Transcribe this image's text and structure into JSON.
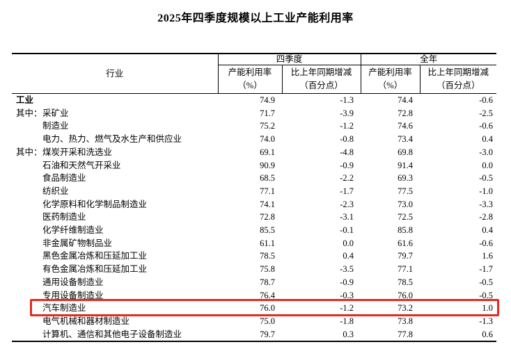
{
  "title": "2025年四季度规模以上工业产能利用率",
  "table": {
    "header": {
      "industry": "行业",
      "groups": [
        {
          "label": "四季度",
          "sub": [
            {
              "line1": "产能利用率",
              "line2": "（%）"
            },
            {
              "line1": "比上年同期增减",
              "line2": "（百分点）"
            }
          ]
        },
        {
          "label": "全年",
          "sub": [
            {
              "line1": "产能利用率",
              "line2": "（%）"
            },
            {
              "line1": "比上年同期增减",
              "line2": "（百分点）"
            }
          ]
        }
      ]
    },
    "rows": [
      {
        "prefix": "",
        "label": "工业",
        "bold": true,
        "indent": false,
        "highlight": false,
        "values": [
          "74.9",
          "-1.3",
          "74.4",
          "-0.6"
        ]
      },
      {
        "prefix": "其中：",
        "label": "采矿业",
        "bold": false,
        "indent": true,
        "highlight": false,
        "values": [
          "71.7",
          "-3.9",
          "72.8",
          "-2.5"
        ]
      },
      {
        "prefix": "",
        "label": "制造业",
        "bold": false,
        "indent": true,
        "highlight": false,
        "values": [
          "75.2",
          "-1.2",
          "74.6",
          "-0.6"
        ]
      },
      {
        "prefix": "",
        "label": "电力、热力、燃气及水生产和供应业",
        "bold": false,
        "indent": true,
        "highlight": false,
        "values": [
          "74.0",
          "-0.8",
          "73.4",
          "0.4"
        ]
      },
      {
        "prefix": "其中：",
        "label": "煤炭开采和洗选业",
        "bold": false,
        "indent": true,
        "highlight": false,
        "values": [
          "69.1",
          "-4.8",
          "69.8",
          "-3.0"
        ]
      },
      {
        "prefix": "",
        "label": "石油和天然气开采业",
        "bold": false,
        "indent": true,
        "highlight": false,
        "values": [
          "90.9",
          "-0.9",
          "91.4",
          "0.0"
        ]
      },
      {
        "prefix": "",
        "label": "食品制造业",
        "bold": false,
        "indent": true,
        "highlight": false,
        "values": [
          "68.5",
          "-2.2",
          "69.3",
          "-0.5"
        ]
      },
      {
        "prefix": "",
        "label": "纺织业",
        "bold": false,
        "indent": true,
        "highlight": false,
        "values": [
          "77.1",
          "-1.7",
          "77.5",
          "-1.0"
        ]
      },
      {
        "prefix": "",
        "label": "化学原料和化学制品制造业",
        "bold": false,
        "indent": true,
        "highlight": false,
        "values": [
          "74.1",
          "-2.3",
          "73.0",
          "-3.3"
        ]
      },
      {
        "prefix": "",
        "label": "医药制造业",
        "bold": false,
        "indent": true,
        "highlight": false,
        "values": [
          "72.8",
          "-3.1",
          "72.5",
          "-2.8"
        ]
      },
      {
        "prefix": "",
        "label": "化学纤维制造业",
        "bold": false,
        "indent": true,
        "highlight": false,
        "values": [
          "85.5",
          "-0.1",
          "85.8",
          "0.4"
        ]
      },
      {
        "prefix": "",
        "label": "非金属矿物制品业",
        "bold": false,
        "indent": true,
        "highlight": false,
        "values": [
          "61.1",
          "0.0",
          "61.6",
          "-0.6"
        ]
      },
      {
        "prefix": "",
        "label": "黑色金属冶炼和压延加工业",
        "bold": false,
        "indent": true,
        "highlight": false,
        "values": [
          "78.5",
          "0.4",
          "79.7",
          "1.6"
        ]
      },
      {
        "prefix": "",
        "label": "有色金属冶炼和压延加工业",
        "bold": false,
        "indent": true,
        "highlight": false,
        "values": [
          "75.8",
          "-3.5",
          "77.1",
          "-1.7"
        ]
      },
      {
        "prefix": "",
        "label": "通用设备制造业",
        "bold": false,
        "indent": true,
        "highlight": false,
        "values": [
          "78.7",
          "-0.9",
          "78.5",
          "-0.5"
        ]
      },
      {
        "prefix": "",
        "label": "专用设备制造业",
        "bold": false,
        "indent": true,
        "highlight": false,
        "values": [
          "76.4",
          "-0.3",
          "76.0",
          "-0.5"
        ]
      },
      {
        "prefix": "",
        "label": "汽车制造业",
        "bold": false,
        "indent": true,
        "highlight": true,
        "values": [
          "76.0",
          "-1.2",
          "73.2",
          "1.0"
        ]
      },
      {
        "prefix": "",
        "label": "电气机械和器材制造业",
        "bold": false,
        "indent": true,
        "highlight": false,
        "values": [
          "75.0",
          "-1.8",
          "73.8",
          "-1.3"
        ]
      },
      {
        "prefix": "",
        "label": "计算机、通信和其他电子设备制造业",
        "bold": false,
        "indent": true,
        "highlight": false,
        "values": [
          "79.7",
          "0.3",
          "77.8",
          "0.6"
        ]
      }
    ]
  },
  "annotation": {
    "highlighted_row": "汽车制造业",
    "color": "#e6291e"
  }
}
